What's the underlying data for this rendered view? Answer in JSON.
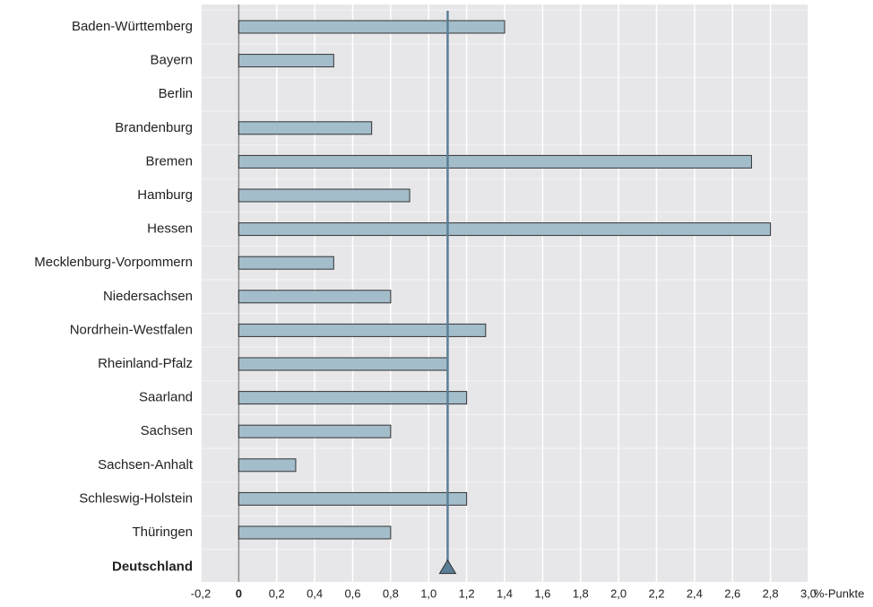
{
  "chart_data": {
    "type": "bar",
    "orientation": "horizontal",
    "categories": [
      "Baden-Württemberg",
      "Bayern",
      "Berlin",
      "Brandenburg",
      "Bremen",
      "Hamburg",
      "Hessen",
      "Mecklenburg-Vorpommern",
      "Niedersachsen",
      "Nordrhein-Westfalen",
      "Rheinland-Pfalz",
      "Saarland",
      "Sachsen",
      "Sachsen-Anhalt",
      "Schleswig-Holstein",
      "Thüringen"
    ],
    "values": [
      1.4,
      0.5,
      0,
      0.7,
      2.7,
      0.9,
      2.8,
      0.5,
      0.8,
      1.3,
      1.1,
      1.2,
      0.8,
      0.3,
      1.2,
      0.8
    ],
    "color": "#a3bdcb",
    "reference": {
      "label": "Deutschland",
      "value": 1.1,
      "color": "#5a7e95"
    },
    "x_label": "%-Punkte",
    "xlim": [
      -0.2,
      3.0
    ],
    "xticks": [
      {
        "value": -0.2,
        "label": "-0,2"
      },
      0,
      {
        "value": 0.2,
        "label": "0,2"
      },
      {
        "value": 0.4,
        "label": "0,4"
      },
      {
        "value": 0.6,
        "label": "0,6"
      },
      {
        "value": 0.8,
        "label": "0,8"
      },
      {
        "value": 1.0,
        "label": "1,0"
      },
      {
        "value": 1.2,
        "label": "1,2"
      },
      {
        "value": 1.4,
        "label": "1,4"
      },
      {
        "value": 1.6,
        "label": "1,6"
      },
      {
        "value": 1.8,
        "label": "1,8"
      },
      {
        "value": 2.0,
        "label": "2,0"
      },
      {
        "value": 2.2,
        "label": "2,2"
      },
      {
        "value": 2.4,
        "label": "2,4"
      },
      {
        "value": 2.6,
        "label": "2,6"
      },
      {
        "value": 2.8,
        "label": "2,8"
      },
      {
        "value": 3.0,
        "label": "3,0"
      }
    ],
    "grid": true
  }
}
